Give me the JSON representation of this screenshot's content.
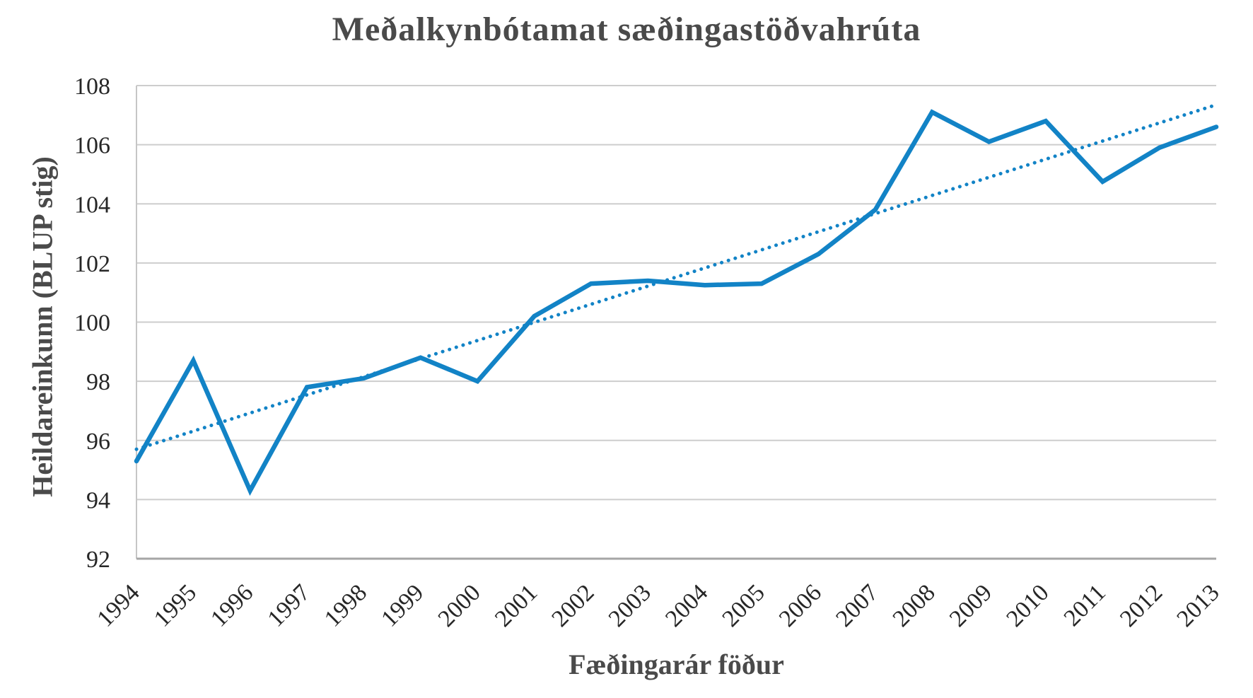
{
  "chart_data": {
    "type": "line",
    "title": "Meðalkynbótamat sæðingastöðvahrúta",
    "xlabel": "Fæðingarár föður",
    "ylabel": "Heildareinkunn (BLUP stig)",
    "categories": [
      "1994",
      "1995",
      "1996",
      "1997",
      "1998",
      "1999",
      "2000",
      "2001",
      "2002",
      "2003",
      "2004",
      "2005",
      "2006",
      "2007",
      "2008",
      "2009",
      "2010",
      "2011",
      "2012",
      "2013"
    ],
    "series": [
      {
        "name": "heildareinkunn-line",
        "style": "solid",
        "values": [
          95.3,
          98.7,
          94.3,
          97.8,
          98.1,
          98.8,
          98.0,
          100.2,
          101.3,
          101.4,
          101.25,
          101.3,
          102.3,
          103.8,
          107.1,
          106.1,
          106.8,
          104.75,
          105.9,
          106.6
        ]
      },
      {
        "name": "linear-trendline",
        "style": "dotted",
        "trend": true,
        "start": 95.7,
        "end": 107.35
      }
    ],
    "ylim": [
      92,
      108
    ],
    "yticks": [
      92,
      94,
      96,
      98,
      100,
      102,
      104,
      106,
      108
    ],
    "grid": "horizontal",
    "legend": "none",
    "colors": {
      "series": "#1283C6",
      "trend": "#1283C6",
      "grid": "#CDCDCD",
      "axis_bottom": "#A6A6A6",
      "axis_left": "#C6C6C6",
      "tick_text": "#262626",
      "title_text": "#4A4A4A"
    }
  }
}
